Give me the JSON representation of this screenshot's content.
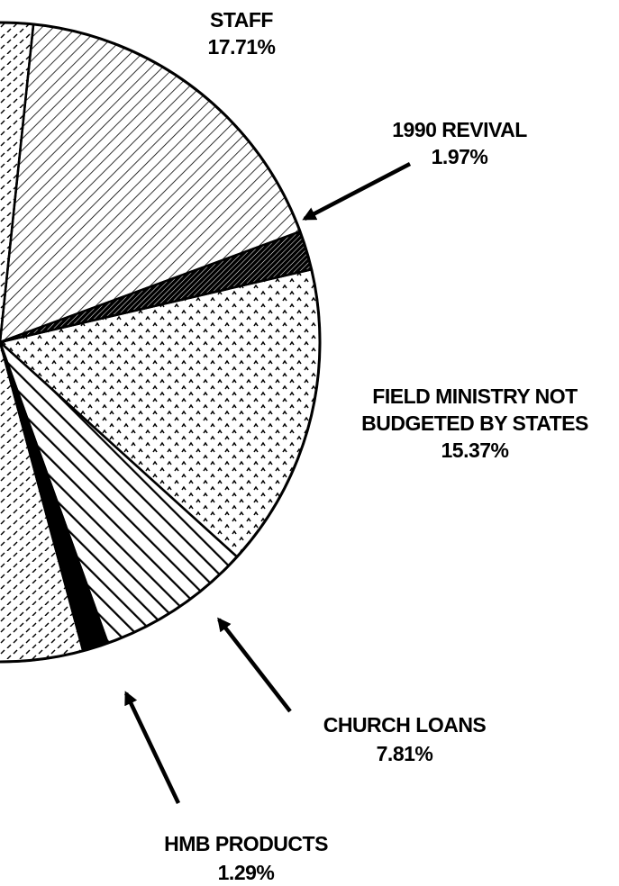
{
  "chart_data": {
    "type": "pie",
    "title": "",
    "slices": [
      {
        "label_lines": [
          "STAFF"
        ],
        "value": 17.71,
        "value_label": "17.71%"
      },
      {
        "label_lines": [
          "1990 REVIVAL"
        ],
        "value": 1.97,
        "value_label": "1.97%"
      },
      {
        "label_lines": [
          "FIELD MINISTRY NOT",
          "BUDGETED BY STATES"
        ],
        "value": 15.37,
        "value_label": "15.37%"
      },
      {
        "label_lines": [
          "CHURCH LOANS"
        ],
        "value": 7.81,
        "value_label": "7.81%"
      },
      {
        "label_lines": [
          "HMB PRODUCTS"
        ],
        "value": 1.29,
        "value_label": "1.29%"
      }
    ]
  },
  "colors": {
    "ink": "#000000",
    "paper": "#ffffff"
  }
}
